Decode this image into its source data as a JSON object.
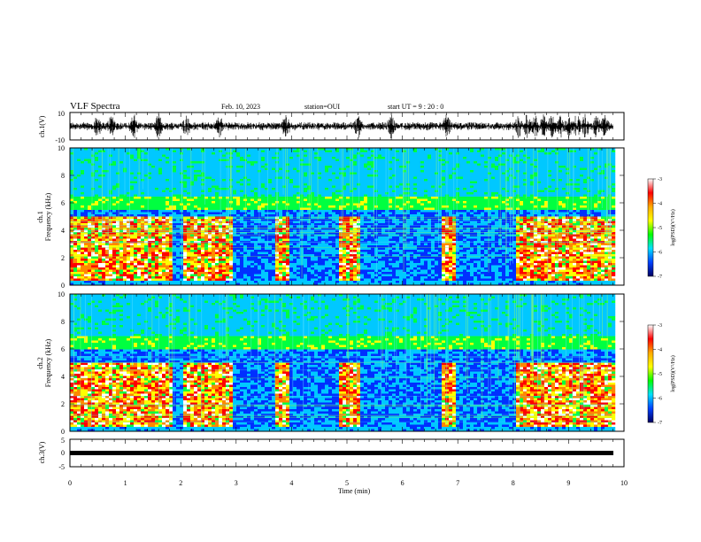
{
  "header": {
    "title": "VLF Spectra",
    "date": "Feb. 10, 2023",
    "station": "station=OUI",
    "start_ut": "start  UT =   9 : 20 : 0"
  },
  "axes": {
    "time_label": "Time  (min)",
    "time_ticks": [
      "0",
      "1",
      "2",
      "3",
      "4",
      "5",
      "6",
      "7",
      "8",
      "9",
      "10"
    ],
    "ch1_label": "ch.1(V)",
    "ch1_ticks": [
      "10",
      "-10"
    ],
    "spec1_label_line1": "ch.1",
    "spec1_label_line2": "Frequency  (kHz)",
    "spec2_label_line1": "ch.2",
    "spec2_label_line2": "Frequency  (kHz)",
    "freq_ticks": [
      "10",
      "8",
      "6",
      "4",
      "2",
      "0"
    ],
    "ch3_label": "ch.3(V)",
    "ch3_ticks": [
      "5",
      "0",
      "-5"
    ]
  },
  "colorbar": {
    "label": "log(PSD)(V²/Hz)",
    "ticks": [
      "-3",
      "-4",
      "-5",
      "-6",
      "-7"
    ],
    "colors": [
      "#ffffff",
      "#ff0000",
      "#ffaa00",
      "#ffff00",
      "#00ff00",
      "#00e0ff",
      "#0040ff",
      "#000060"
    ]
  },
  "chart_data": [
    {
      "type": "line",
      "name": "ch.1 waveform",
      "xlabel": "Time  (min)",
      "ylabel": "ch.1(V)",
      "xlim": [
        0,
        10
      ],
      "ylim": [
        -10,
        10
      ],
      "burst_times_min": [
        0.5,
        0.75,
        1.15,
        1.6,
        2.1,
        2.7,
        3.9,
        5.2,
        5.8,
        6.8,
        8.1,
        8.25,
        8.4,
        8.55,
        8.7,
        8.85,
        9.0,
        9.15,
        9.3,
        9.5,
        9.65
      ]
    },
    {
      "type": "heatmap",
      "name": "ch.1 spectrogram",
      "xlabel": "Time  (min)",
      "ylabel": "Frequency  (kHz)",
      "xlim": [
        0,
        9.8
      ],
      "ylim": [
        0,
        10
      ],
      "zlabel": "log(PSD)(V²/Hz)",
      "zlim": [
        -7,
        -3
      ],
      "background_band_khz": [
        5.5,
        6.5
      ],
      "active_segments_min": [
        [
          0.0,
          1.8
        ],
        [
          2.0,
          2.9
        ],
        [
          3.7,
          3.95
        ],
        [
          4.8,
          5.2
        ],
        [
          6.7,
          6.95
        ],
        [
          8.0,
          9.8
        ]
      ],
      "active_band_khz": [
        0,
        5.0
      ]
    },
    {
      "type": "heatmap",
      "name": "ch.2 spectrogram",
      "xlabel": "Time  (min)",
      "ylabel": "Frequency  (kHz)",
      "xlim": [
        0,
        9.8
      ],
      "ylim": [
        0,
        10
      ],
      "zlabel": "log(PSD)(V²/Hz)",
      "zlim": [
        -7,
        -3
      ],
      "background_band_khz": [
        6.0,
        7.0
      ],
      "active_segments_min": [
        [
          0.0,
          1.8
        ],
        [
          2.0,
          2.9
        ],
        [
          3.7,
          3.95
        ],
        [
          4.8,
          5.2
        ],
        [
          6.7,
          6.95
        ],
        [
          8.0,
          9.8
        ]
      ],
      "active_band_khz": [
        0,
        5.0
      ]
    },
    {
      "type": "line",
      "name": "ch.3 waveform",
      "xlabel": "Time  (min)",
      "ylabel": "ch.3(V)",
      "xlim": [
        0,
        10
      ],
      "ylim": [
        -5,
        5
      ],
      "constant_value": 0
    }
  ]
}
